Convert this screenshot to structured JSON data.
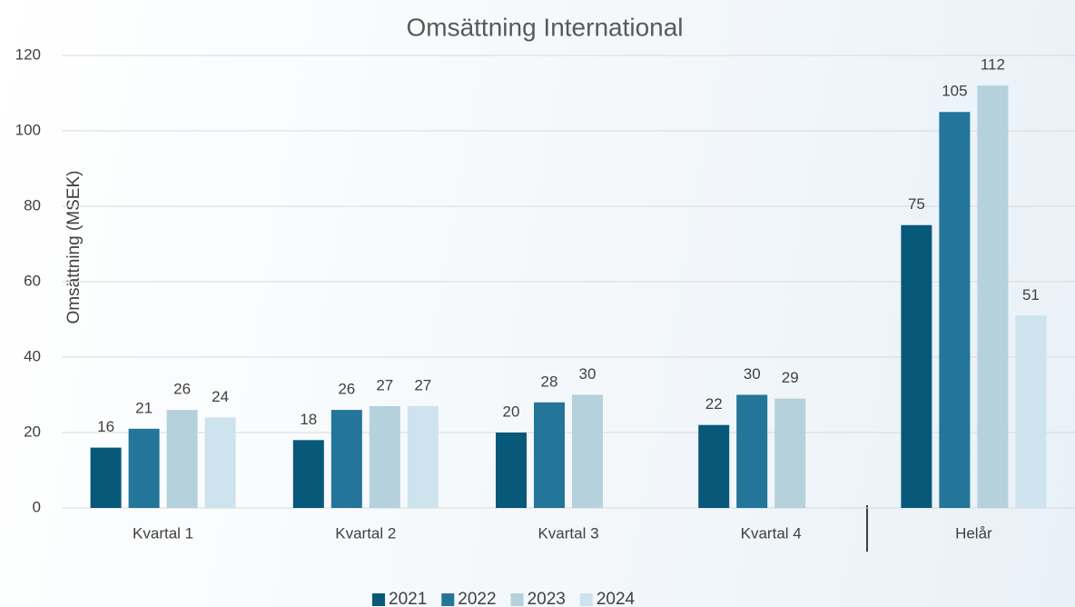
{
  "chart_data": {
    "type": "bar",
    "title": "Omsättning International",
    "y_label": "Omsättning (MSEK)",
    "categories": [
      "Kvartal 1",
      "Kvartal 2",
      "Kvartal 3",
      "Kvartal 4",
      "Helår"
    ],
    "series": [
      {
        "name": "2021",
        "color": "#08587a",
        "values": [
          16,
          18,
          20,
          22,
          75
        ]
      },
      {
        "name": "2022",
        "color": "#237599",
        "values": [
          21,
          26,
          28,
          30,
          105
        ]
      },
      {
        "name": "2023",
        "color": "#b5d1dc",
        "values": [
          26,
          27,
          30,
          29,
          112
        ]
      },
      {
        "name": "2024",
        "color": "#cde3ee",
        "values": [
          24,
          27,
          null,
          null,
          51
        ]
      }
    ],
    "ylim": [
      0,
      120
    ],
    "yticks": [
      0,
      20,
      40,
      60,
      80,
      100,
      120
    ],
    "grid": true,
    "legend": "bottom"
  }
}
